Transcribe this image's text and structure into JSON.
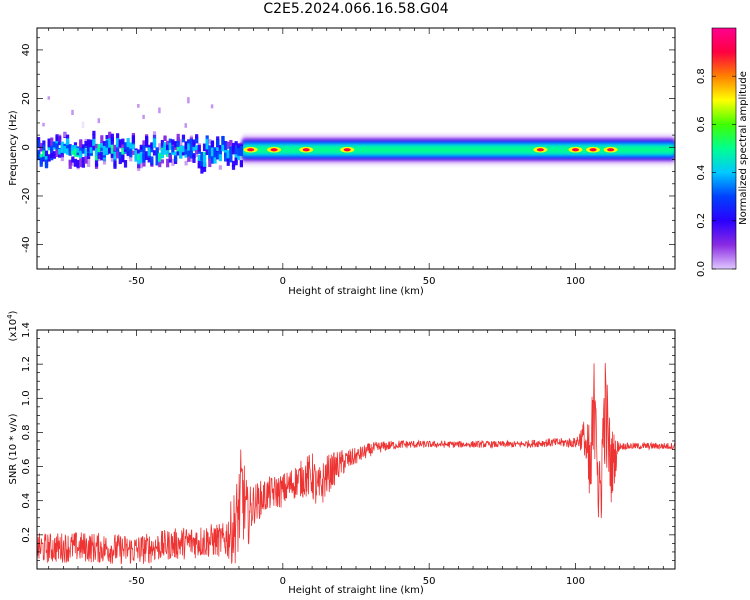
{
  "title": "C2E5.2024.066.16.58.G04",
  "colors": {
    "snr_line": "#ee3333",
    "colormap": [
      "#e0c8ff",
      "#8a2be2",
      "#2a00ff",
      "#0040ff",
      "#00c8ff",
      "#00ff90",
      "#40ff00",
      "#ffff00",
      "#ff8000",
      "#ff0040",
      "#ff0090"
    ]
  },
  "chart_data": [
    {
      "type": "heatmap",
      "title": "",
      "xlabel": "Height of straight line (km)",
      "ylabel": "Frequency (Hz)",
      "xlim": [
        -84,
        134
      ],
      "ylim": [
        -50,
        49
      ],
      "x_ticks": [
        -50,
        0,
        50,
        100
      ],
      "y_ticks": [
        -40,
        -20,
        0,
        20,
        40
      ],
      "colorbar": {
        "label": "Normalized spectral amplitude",
        "range": [
          0,
          1
        ],
        "ticks": [
          0.0,
          0.2,
          0.4,
          0.6,
          0.8
        ]
      },
      "ridge": {
        "frequency_hz": -1,
        "noisy_segment_km": [
          -84,
          -14
        ],
        "stable_segment_km": [
          -14,
          134
        ],
        "peak_spots_km": [
          -11,
          -3,
          8,
          22,
          88,
          100,
          106,
          112
        ]
      }
    },
    {
      "type": "line",
      "title": "",
      "xlabel": "Height of straight line (km)",
      "ylabel": "SNR (10 * v/v)",
      "y_multiplier": "(x10",
      "y_multiplier_exp": "4",
      "y_multiplier_close": ")",
      "xlim": [
        -84,
        134
      ],
      "ylim": [
        0,
        1.4
      ],
      "x_ticks": [
        -50,
        0,
        50,
        100
      ],
      "y_ticks": [
        0.2,
        0.4,
        0.6,
        0.8,
        1.0,
        1.2,
        1.4
      ],
      "series": [
        {
          "x": [
            -84,
            -70,
            -60,
            -50,
            -40,
            -30,
            -20,
            -16,
            -14,
            -12,
            -10,
            -5,
            0,
            5,
            10,
            12,
            15,
            20,
            25,
            30,
            35,
            40,
            50,
            60,
            70,
            80,
            90,
            100,
            103,
            105,
            107,
            108,
            110,
            112,
            115,
            120,
            125,
            134
          ],
          "y": [
            0.12,
            0.13,
            0.12,
            0.11,
            0.14,
            0.16,
            0.17,
            0.25,
            0.45,
            0.3,
            0.38,
            0.44,
            0.46,
            0.52,
            0.55,
            0.45,
            0.55,
            0.62,
            0.66,
            0.7,
            0.72,
            0.73,
            0.73,
            0.73,
            0.73,
            0.73,
            0.74,
            0.74,
            0.78,
            0.5,
            1.1,
            0.3,
            0.95,
            0.6,
            0.72,
            0.72,
            0.72,
            0.72
          ],
          "noise": [
            0.09,
            0.09,
            0.09,
            0.09,
            0.09,
            0.1,
            0.1,
            0.25,
            0.3,
            0.18,
            0.12,
            0.1,
            0.1,
            0.1,
            0.14,
            0.14,
            0.12,
            0.08,
            0.05,
            0.04,
            0.03,
            0.025,
            0.02,
            0.02,
            0.02,
            0.02,
            0.025,
            0.03,
            0.1,
            0.35,
            0.35,
            0.3,
            0.35,
            0.25,
            0.02,
            0.02,
            0.02,
            0.02
          ]
        }
      ]
    }
  ]
}
